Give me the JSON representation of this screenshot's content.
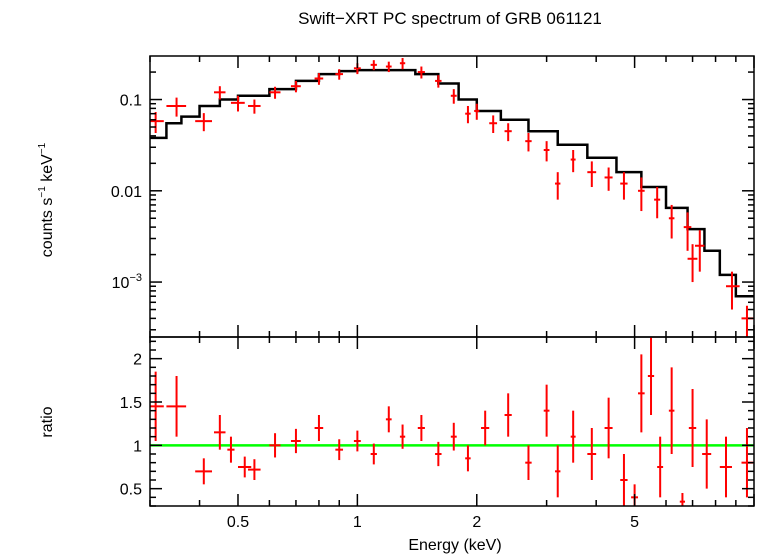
{
  "chart_data": [
    {
      "type": "scatter",
      "title": "Swift−XRT PC spectrum of GRB 061121",
      "xlabel": "",
      "ylabel_parts": {
        "prefix": "counts s",
        "exp1": "−1",
        "mid": " keV",
        "exp2": "−1"
      },
      "xscale": "log",
      "yscale": "log",
      "xlim": [
        0.3,
        10
      ],
      "ylim": [
        0.00025,
        0.3
      ],
      "yticks": [
        {
          "value": 0.1,
          "label": "0.1"
        },
        {
          "value": 0.01,
          "label": "0.01"
        },
        {
          "value": 0.001,
          "base": "10",
          "exp": "−3"
        }
      ],
      "series": [
        {
          "name": "data",
          "color": "#ff0000",
          "points": [
            {
              "x": 0.31,
              "y": 0.058,
              "xlo": 0.3,
              "xhi": 0.325,
              "yerr": 0.015
            },
            {
              "x": 0.35,
              "y": 0.085,
              "xlo": 0.33,
              "xhi": 0.37,
              "yerr": 0.02
            },
            {
              "x": 0.41,
              "y": 0.058,
              "xlo": 0.39,
              "xhi": 0.43,
              "yerr": 0.013
            },
            {
              "x": 0.45,
              "y": 0.12,
              "xlo": 0.435,
              "xhi": 0.465,
              "yerr": 0.02
            },
            {
              "x": 0.5,
              "y": 0.092,
              "xlo": 0.48,
              "xhi": 0.52,
              "yerr": 0.018
            },
            {
              "x": 0.55,
              "y": 0.085,
              "xlo": 0.53,
              "xhi": 0.57,
              "yerr": 0.015
            },
            {
              "x": 0.62,
              "y": 0.12,
              "xlo": 0.6,
              "xhi": 0.64,
              "yerr": 0.018
            },
            {
              "x": 0.7,
              "y": 0.14,
              "xlo": 0.68,
              "xhi": 0.72,
              "yerr": 0.02
            },
            {
              "x": 0.8,
              "y": 0.17,
              "xlo": 0.78,
              "xhi": 0.82,
              "yerr": 0.025
            },
            {
              "x": 0.9,
              "y": 0.19,
              "xlo": 0.88,
              "xhi": 0.92,
              "yerr": 0.025
            },
            {
              "x": 1.0,
              "y": 0.22,
              "xlo": 0.98,
              "xhi": 1.02,
              "yerr": 0.03
            },
            {
              "x": 1.1,
              "y": 0.24,
              "xlo": 1.08,
              "xhi": 1.12,
              "yerr": 0.03
            },
            {
              "x": 1.2,
              "y": 0.23,
              "xlo": 1.18,
              "xhi": 1.22,
              "yerr": 0.03
            },
            {
              "x": 1.3,
              "y": 0.25,
              "xlo": 1.28,
              "xhi": 1.32,
              "yerr": 0.035
            },
            {
              "x": 1.45,
              "y": 0.2,
              "xlo": 1.42,
              "xhi": 1.48,
              "yerr": 0.03
            },
            {
              "x": 1.6,
              "y": 0.16,
              "xlo": 1.57,
              "xhi": 1.63,
              "yerr": 0.025
            },
            {
              "x": 1.75,
              "y": 0.11,
              "xlo": 1.72,
              "xhi": 1.78,
              "yerr": 0.02
            },
            {
              "x": 1.9,
              "y": 0.07,
              "xlo": 1.87,
              "xhi": 1.93,
              "yerr": 0.015
            },
            {
              "x": 2.0,
              "y": 0.075,
              "xlo": 1.97,
              "xhi": 2.03,
              "yerr": 0.015
            },
            {
              "x": 2.2,
              "y": 0.055,
              "xlo": 2.15,
              "xhi": 2.25,
              "yerr": 0.012
            },
            {
              "x": 2.4,
              "y": 0.045,
              "xlo": 2.35,
              "xhi": 2.45,
              "yerr": 0.01
            },
            {
              "x": 2.7,
              "y": 0.035,
              "xlo": 2.65,
              "xhi": 2.75,
              "yerr": 0.008
            },
            {
              "x": 3.0,
              "y": 0.028,
              "xlo": 2.95,
              "xhi": 3.05,
              "yerr": 0.007
            },
            {
              "x": 3.2,
              "y": 0.012,
              "xlo": 3.15,
              "xhi": 3.25,
              "yerr": 0.004
            },
            {
              "x": 3.5,
              "y": 0.022,
              "xlo": 3.45,
              "xhi": 3.55,
              "yerr": 0.006
            },
            {
              "x": 3.9,
              "y": 0.016,
              "xlo": 3.8,
              "xhi": 4.0,
              "yerr": 0.005
            },
            {
              "x": 4.3,
              "y": 0.014,
              "xlo": 4.2,
              "xhi": 4.4,
              "yerr": 0.004
            },
            {
              "x": 4.7,
              "y": 0.012,
              "xlo": 4.6,
              "xhi": 4.8,
              "yerr": 0.004
            },
            {
              "x": 5.2,
              "y": 0.01,
              "xlo": 5.1,
              "xhi": 5.3,
              "yerr": 0.004
            },
            {
              "x": 5.7,
              "y": 0.008,
              "xlo": 5.6,
              "xhi": 5.8,
              "yerr": 0.003
            },
            {
              "x": 6.2,
              "y": 0.005,
              "xlo": 6.1,
              "xhi": 6.3,
              "yerr": 0.002
            },
            {
              "x": 6.8,
              "y": 0.004,
              "xlo": 6.65,
              "xhi": 6.95,
              "yerr": 0.0018
            },
            {
              "x": 7.3,
              "y": 0.0025,
              "xlo": 7.1,
              "xhi": 7.5,
              "yerr": 0.0012
            },
            {
              "x": 7.0,
              "y": 0.0018,
              "xlo": 6.8,
              "xhi": 7.2,
              "yerr": 0.0008
            },
            {
              "x": 8.8,
              "y": 0.0009,
              "xlo": 8.5,
              "xhi": 9.2,
              "yerr": 0.0004
            },
            {
              "x": 9.6,
              "y": 0.0004,
              "xlo": 9.3,
              "xhi": 9.95,
              "yerr": 0.00015
            }
          ]
        },
        {
          "name": "model",
          "color": "#000000",
          "style": "step",
          "points": [
            {
              "x": 0.3,
              "y": 0.038
            },
            {
              "x": 0.33,
              "y": 0.055
            },
            {
              "x": 0.36,
              "y": 0.065
            },
            {
              "x": 0.4,
              "y": 0.085
            },
            {
              "x": 0.45,
              "y": 0.1
            },
            {
              "x": 0.5,
              "y": 0.11
            },
            {
              "x": 0.6,
              "y": 0.13
            },
            {
              "x": 0.7,
              "y": 0.16
            },
            {
              "x": 0.8,
              "y": 0.19
            },
            {
              "x": 0.9,
              "y": 0.205
            },
            {
              "x": 1.0,
              "y": 0.21
            },
            {
              "x": 1.2,
              "y": 0.21
            },
            {
              "x": 1.4,
              "y": 0.19
            },
            {
              "x": 1.6,
              "y": 0.15
            },
            {
              "x": 1.8,
              "y": 0.1
            },
            {
              "x": 2.0,
              "y": 0.075
            },
            {
              "x": 2.3,
              "y": 0.06
            },
            {
              "x": 2.7,
              "y": 0.045
            },
            {
              "x": 3.2,
              "y": 0.032
            },
            {
              "x": 3.8,
              "y": 0.023
            },
            {
              "x": 4.5,
              "y": 0.016
            },
            {
              "x": 5.2,
              "y": 0.011
            },
            {
              "x": 6.0,
              "y": 0.0065
            },
            {
              "x": 6.8,
              "y": 0.0038
            },
            {
              "x": 7.5,
              "y": 0.0022
            },
            {
              "x": 8.2,
              "y": 0.0012
            },
            {
              "x": 9.0,
              "y": 0.0007
            },
            {
              "x": 10.0,
              "y": 0.0007
            }
          ]
        }
      ]
    },
    {
      "type": "scatter",
      "xlabel": "Energy (keV)",
      "ylabel": "ratio",
      "xscale": "log",
      "yscale": "linear",
      "xlim": [
        0.3,
        10
      ],
      "ylim": [
        0.3,
        2.25
      ],
      "xticks": [
        {
          "value": 0.5,
          "label": "0.5"
        },
        {
          "value": 1,
          "label": "1"
        },
        {
          "value": 2,
          "label": "2"
        },
        {
          "value": 5,
          "label": "5"
        }
      ],
      "yticks": [
        {
          "value": 0.5,
          "label": "0.5"
        },
        {
          "value": 1,
          "label": "1"
        },
        {
          "value": 1.5,
          "label": "1.5"
        },
        {
          "value": 2,
          "label": "2"
        }
      ],
      "reference_line": {
        "y": 1,
        "color": "#00ff00"
      },
      "series": [
        {
          "name": "ratio",
          "color": "#ff0000",
          "points": [
            {
              "x": 0.31,
              "y": 1.45,
              "xlo": 0.3,
              "xhi": 0.325,
              "yerr": 0.4
            },
            {
              "x": 0.35,
              "y": 1.45,
              "xlo": 0.33,
              "xhi": 0.37,
              "yerr": 0.35
            },
            {
              "x": 0.41,
              "y": 0.7,
              "xlo": 0.39,
              "xhi": 0.43,
              "yerr": 0.15
            },
            {
              "x": 0.45,
              "y": 1.15,
              "xlo": 0.435,
              "xhi": 0.465,
              "yerr": 0.2
            },
            {
              "x": 0.48,
              "y": 0.95,
              "xlo": 0.47,
              "xhi": 0.49,
              "yerr": 0.15
            },
            {
              "x": 0.52,
              "y": 0.75,
              "xlo": 0.5,
              "xhi": 0.54,
              "yerr": 0.12
            },
            {
              "x": 0.55,
              "y": 0.72,
              "xlo": 0.53,
              "xhi": 0.57,
              "yerr": 0.12
            },
            {
              "x": 0.62,
              "y": 1.0,
              "xlo": 0.6,
              "xhi": 0.64,
              "yerr": 0.14
            },
            {
              "x": 0.7,
              "y": 1.05,
              "xlo": 0.68,
              "xhi": 0.72,
              "yerr": 0.14
            },
            {
              "x": 0.8,
              "y": 1.2,
              "xlo": 0.78,
              "xhi": 0.82,
              "yerr": 0.15
            },
            {
              "x": 0.9,
              "y": 0.95,
              "xlo": 0.88,
              "xhi": 0.92,
              "yerr": 0.12
            },
            {
              "x": 1.0,
              "y": 1.05,
              "xlo": 0.98,
              "xhi": 1.02,
              "yerr": 0.12
            },
            {
              "x": 1.1,
              "y": 0.9,
              "xlo": 1.08,
              "xhi": 1.12,
              "yerr": 0.12
            },
            {
              "x": 1.2,
              "y": 1.3,
              "xlo": 1.18,
              "xhi": 1.22,
              "yerr": 0.15
            },
            {
              "x": 1.3,
              "y": 1.1,
              "xlo": 1.28,
              "xhi": 1.32,
              "yerr": 0.14
            },
            {
              "x": 1.45,
              "y": 1.2,
              "xlo": 1.42,
              "xhi": 1.48,
              "yerr": 0.15
            },
            {
              "x": 1.6,
              "y": 0.9,
              "xlo": 1.57,
              "xhi": 1.63,
              "yerr": 0.14
            },
            {
              "x": 1.75,
              "y": 1.1,
              "xlo": 1.72,
              "xhi": 1.78,
              "yerr": 0.16
            },
            {
              "x": 1.9,
              "y": 0.85,
              "xlo": 1.87,
              "xhi": 1.93,
              "yerr": 0.15
            },
            {
              "x": 2.1,
              "y": 1.2,
              "xlo": 2.05,
              "xhi": 2.15,
              "yerr": 0.2
            },
            {
              "x": 2.4,
              "y": 1.35,
              "xlo": 2.35,
              "xhi": 2.45,
              "yerr": 0.25
            },
            {
              "x": 2.7,
              "y": 0.8,
              "xlo": 2.65,
              "xhi": 2.75,
              "yerr": 0.2
            },
            {
              "x": 3.0,
              "y": 1.4,
              "xlo": 2.95,
              "xhi": 3.05,
              "yerr": 0.3
            },
            {
              "x": 3.2,
              "y": 0.7,
              "xlo": 3.15,
              "xhi": 3.25,
              "yerr": 0.3
            },
            {
              "x": 3.5,
              "y": 1.1,
              "xlo": 3.45,
              "xhi": 3.55,
              "yerr": 0.3
            },
            {
              "x": 3.9,
              "y": 0.9,
              "xlo": 3.8,
              "xhi": 4.0,
              "yerr": 0.3
            },
            {
              "x": 4.3,
              "y": 1.2,
              "xlo": 4.2,
              "xhi": 4.4,
              "yerr": 0.35
            },
            {
              "x": 4.7,
              "y": 0.6,
              "xlo": 4.6,
              "xhi": 4.8,
              "yerr": 0.3
            },
            {
              "x": 5.0,
              "y": 0.4,
              "xlo": 4.9,
              "xhi": 5.1,
              "yerr": 0.15
            },
            {
              "x": 5.2,
              "y": 1.6,
              "xlo": 5.1,
              "xhi": 5.3,
              "yerr": 0.45
            },
            {
              "x": 5.5,
              "y": 1.8,
              "xlo": 5.4,
              "xhi": 5.6,
              "yerr": 0.45
            },
            {
              "x": 5.8,
              "y": 0.75,
              "xlo": 5.7,
              "xhi": 5.9,
              "yerr": 0.35
            },
            {
              "x": 6.2,
              "y": 1.4,
              "xlo": 6.1,
              "xhi": 6.3,
              "yerr": 0.5
            },
            {
              "x": 6.6,
              "y": 0.35,
              "xlo": 6.5,
              "xhi": 6.7,
              "yerr": 0.1
            },
            {
              "x": 7.0,
              "y": 1.2,
              "xlo": 6.85,
              "xhi": 7.15,
              "yerr": 0.45
            },
            {
              "x": 7.6,
              "y": 0.9,
              "xlo": 7.4,
              "xhi": 7.8,
              "yerr": 0.4
            },
            {
              "x": 8.5,
              "y": 0.75,
              "xlo": 8.2,
              "xhi": 8.8,
              "yerr": 0.35
            },
            {
              "x": 9.6,
              "y": 0.8,
              "xlo": 9.3,
              "xhi": 9.95,
              "yerr": 0.4
            }
          ]
        }
      ]
    }
  ]
}
